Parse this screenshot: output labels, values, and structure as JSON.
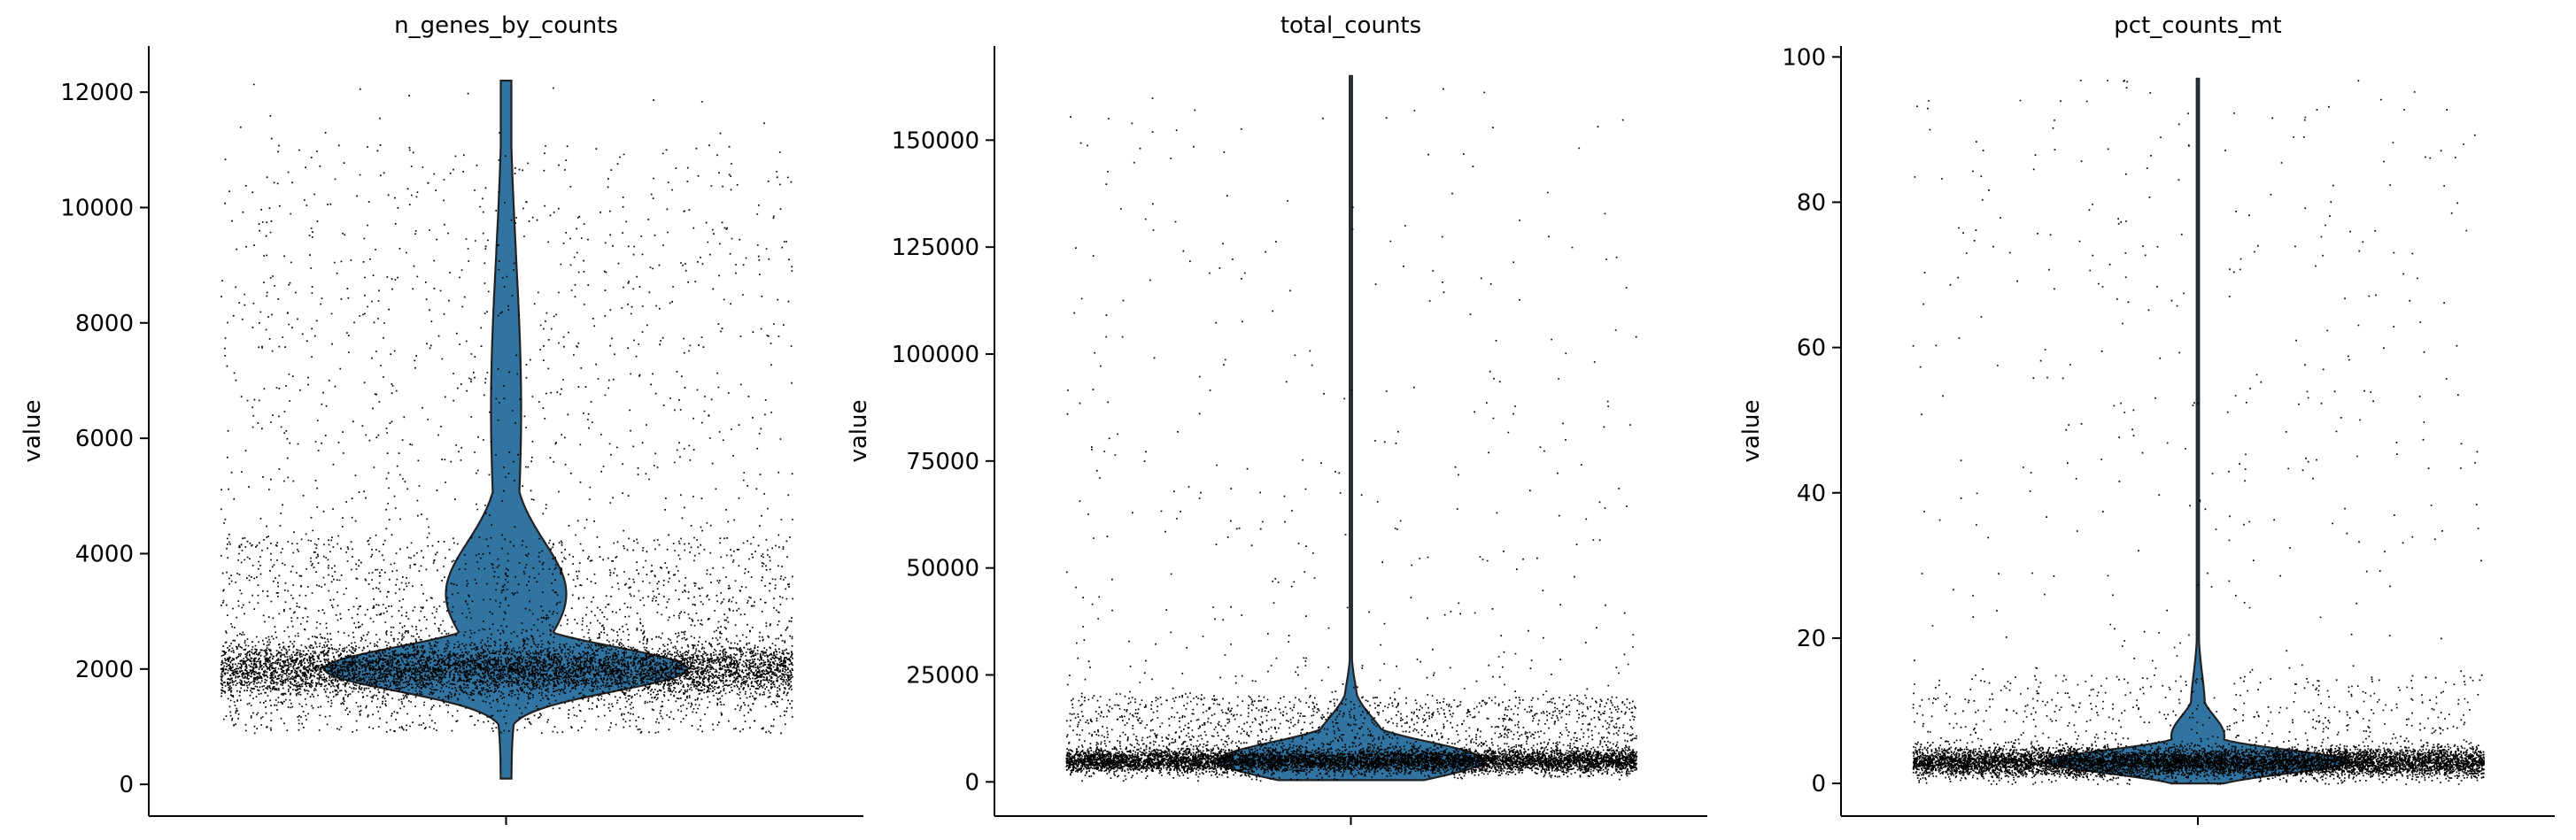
{
  "chart_data": [
    {
      "type": "violin",
      "title": "n_genes_by_counts",
      "ylabel": "value",
      "ylim": [
        -550,
        12800
      ],
      "yticks": [
        0,
        2000,
        4000,
        6000,
        8000,
        10000,
        12000
      ],
      "ytick_labels": [
        "0",
        "2000",
        "4000",
        "6000",
        "8000",
        "10000",
        "12000"
      ],
      "distribution": {
        "min": 100,
        "max": 12200,
        "mode": 2000
      },
      "violin_color": "#3274a1",
      "point_color": "#000000"
    },
    {
      "type": "violin",
      "title": "total_counts",
      "ylabel": "value",
      "ylim": [
        -8000,
        172000
      ],
      "yticks": [
        0,
        25000,
        50000,
        75000,
        100000,
        125000,
        150000
      ],
      "ytick_labels": [
        "0",
        "25000",
        "50000",
        "75000",
        "100000",
        "125000",
        "150000"
      ],
      "distribution": {
        "min": 400,
        "max": 165000,
        "mode": 5000
      },
      "violin_color": "#3274a1",
      "point_color": "#000000"
    },
    {
      "type": "violin",
      "title": "pct_counts_mt",
      "ylabel": "value",
      "ylim": [
        -4.5,
        101.5
      ],
      "yticks": [
        0,
        20,
        40,
        60,
        80,
        100
      ],
      "ytick_labels": [
        "0",
        "20",
        "40",
        "60",
        "80",
        "100"
      ],
      "distribution": {
        "min": 0,
        "max": 97,
        "mode": 3
      },
      "violin_color": "#3274a1",
      "point_color": "#000000"
    }
  ]
}
